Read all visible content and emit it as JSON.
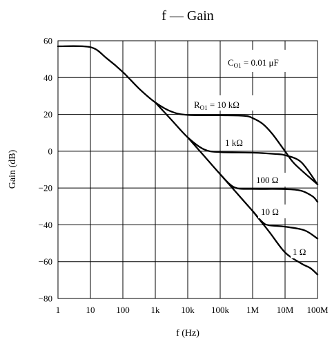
{
  "chart_data": {
    "type": "line",
    "title": "f — Gain",
    "xlabel": "f  (Hz)",
    "ylabel": "Gain  (dB)",
    "x_scale": "log",
    "xlim": [
      1,
      100000000
    ],
    "ylim": [
      -80,
      60
    ],
    "grid": true,
    "x_ticks": [
      "1",
      "10",
      "100",
      "1k",
      "10k",
      "100k",
      "1M",
      "10M",
      "100M"
    ],
    "y_ticks": [
      "60",
      "40",
      "20",
      "0",
      "−20",
      "−40",
      "−60",
      "−80"
    ],
    "annotation": {
      "prefix": "C",
      "sub": "O1",
      "suffix": " = 0.01 μF"
    },
    "series": [
      {
        "name": "10 kΩ",
        "label": {
          "prefix": "R",
          "sub": "O1",
          "suffix": " = 10 kΩ"
        },
        "points": [
          [
            1,
            57
          ],
          [
            10,
            56.5
          ],
          [
            31.6,
            50.5
          ],
          [
            100,
            43
          ],
          [
            316,
            34
          ],
          [
            1000,
            26.5
          ],
          [
            3162,
            21.5
          ],
          [
            10000,
            19.7
          ],
          [
            100000,
            19.5
          ],
          [
            562000,
            19.2
          ],
          [
            1000000,
            18
          ],
          [
            2000000,
            15
          ],
          [
            4000000,
            9.5
          ],
          [
            10000000,
            0
          ],
          [
            20000000,
            -7
          ],
          [
            100000000,
            -18
          ]
        ]
      },
      {
        "name": "1 kΩ",
        "label": {
          "prefix": "",
          "sub": "",
          "suffix": "1 kΩ"
        },
        "points": [
          [
            1000,
            26.5
          ],
          [
            3162,
            17
          ],
          [
            10000,
            7.5
          ],
          [
            31600,
            1
          ],
          [
            100000,
            -0.5
          ],
          [
            1000000,
            -0.8
          ],
          [
            5000000,
            -1.5
          ],
          [
            10000000,
            -2.2
          ],
          [
            31600000,
            -6
          ],
          [
            100000000,
            -18
          ]
        ]
      },
      {
        "name": "100 Ω",
        "label": {
          "prefix": "",
          "sub": "",
          "suffix": "100 Ω"
        },
        "points": [
          [
            10000,
            7.5
          ],
          [
            31600,
            -2.5
          ],
          [
            100000,
            -12.5
          ],
          [
            200000,
            -18
          ],
          [
            350000,
            -20.2
          ],
          [
            1000000,
            -20.5
          ],
          [
            10000000,
            -20.6
          ],
          [
            31600000,
            -21.5
          ],
          [
            70000000,
            -24.5
          ],
          [
            100000000,
            -27.5
          ]
        ]
      },
      {
        "name": "10 Ω",
        "label": {
          "prefix": "",
          "sub": "",
          "suffix": "10 Ω"
        },
        "points": [
          [
            100000,
            -12.5
          ],
          [
            316000,
            -22.5
          ],
          [
            1000000,
            -32.5
          ],
          [
            2000000,
            -38.5
          ],
          [
            3160000,
            -40.2
          ],
          [
            10000000,
            -41
          ],
          [
            40000000,
            -43
          ],
          [
            100000000,
            -47.5
          ]
        ]
      },
      {
        "name": "1 Ω",
        "label": {
          "prefix": "",
          "sub": "",
          "suffix": "1 Ω"
        },
        "points": [
          [
            1000000,
            -32.5
          ],
          [
            3160000,
            -43.5
          ],
          [
            10000000,
            -55
          ],
          [
            31600000,
            -61
          ],
          [
            60000000,
            -63.5
          ],
          [
            100000000,
            -67
          ]
        ]
      }
    ]
  }
}
